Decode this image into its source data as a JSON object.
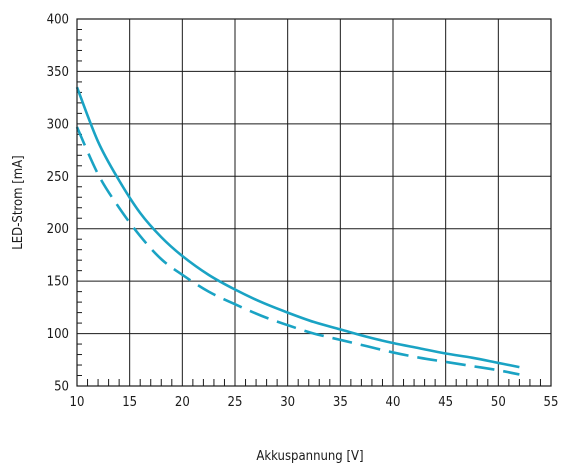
{
  "chart_data": {
    "type": "line",
    "title": "",
    "xlabel": "Akkuspannung [V]",
    "ylabel": "LED-Strom [mA]",
    "xlim": [
      10,
      55
    ],
    "ylim": [
      50,
      400
    ],
    "x_ticks": [
      10,
      15,
      20,
      25,
      30,
      35,
      40,
      45,
      50,
      55
    ],
    "y_ticks": [
      50,
      100,
      150,
      200,
      250,
      300,
      350,
      400
    ],
    "grid": true,
    "legend": "none",
    "series": [
      {
        "style": "solid",
        "color": "#1aa3c4",
        "x": [
          10,
          12,
          14,
          16,
          18,
          20,
          22.5,
          25,
          27.5,
          30,
          32.5,
          35,
          37.5,
          40,
          42.5,
          45,
          47.5,
          50,
          52
        ],
        "y": [
          335,
          283,
          246,
          215,
          192,
          174,
          156,
          142,
          130,
          120,
          111,
          104,
          97,
          91,
          86,
          81,
          77,
          72,
          68
        ]
      },
      {
        "style": "dashed",
        "color": "#1aa3c4",
        "x": [
          10,
          12,
          14,
          16,
          18,
          20,
          22.5,
          25,
          27.5,
          30,
          32.5,
          35,
          37.5,
          40,
          42.5,
          45,
          47.5,
          50,
          52
        ],
        "y": [
          297,
          252,
          220,
          193,
          171,
          156,
          140,
          128,
          117,
          108,
          100,
          94,
          88,
          82,
          77,
          73,
          69,
          65,
          61
        ]
      }
    ]
  }
}
